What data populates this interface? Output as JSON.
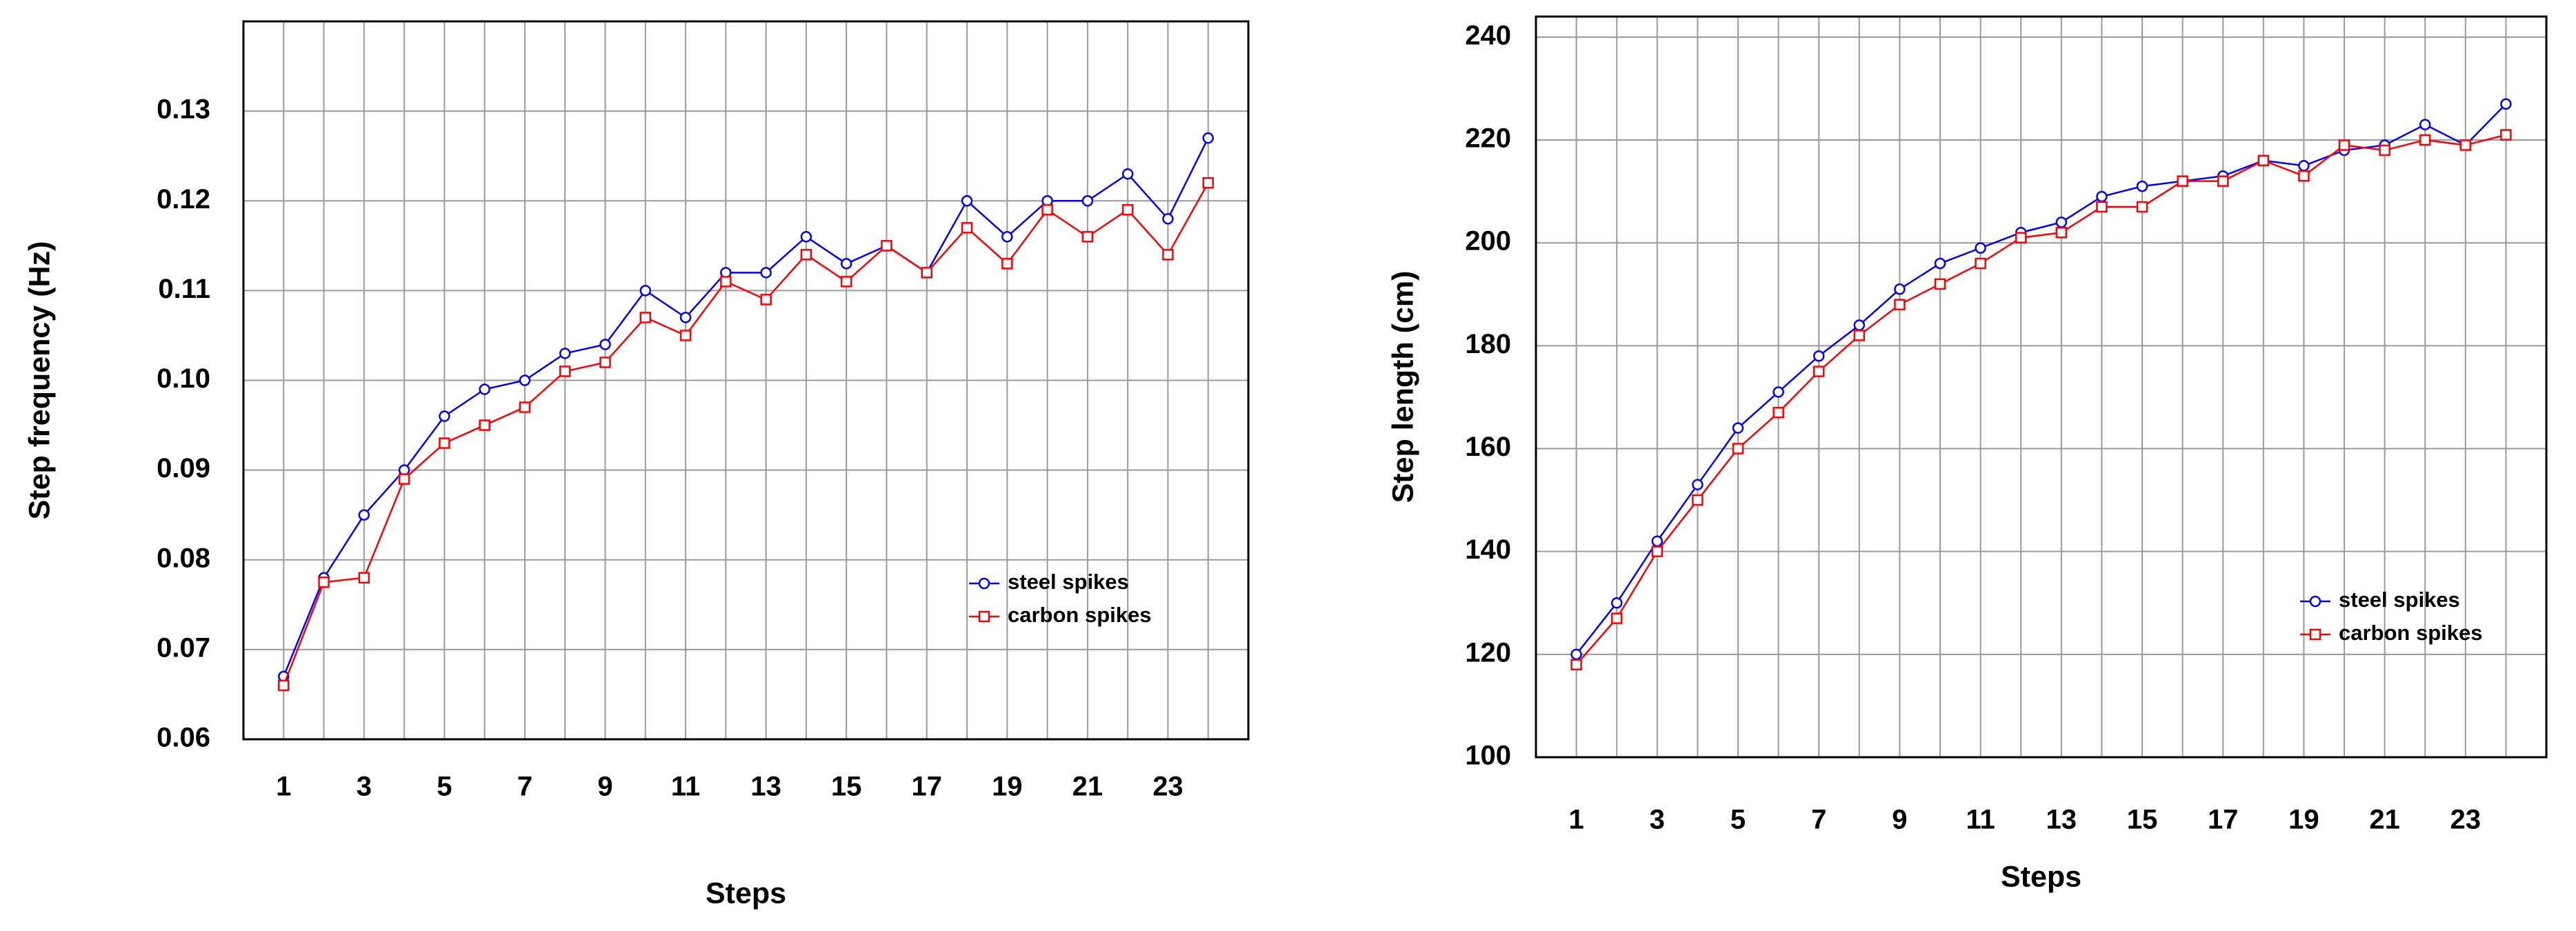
{
  "chart_data": [
    {
      "type": "line",
      "xlabel": "Steps",
      "ylabel": "Step frequency (Hz)",
      "x": [
        1,
        2,
        3,
        4,
        5,
        6,
        7,
        8,
        9,
        10,
        11,
        12,
        13,
        14,
        15,
        16,
        17,
        18,
        19,
        20,
        21,
        22,
        23,
        24
      ],
      "xlim": [
        0,
        25
      ],
      "xticks": [
        1,
        3,
        5,
        7,
        9,
        11,
        13,
        15,
        17,
        19,
        21,
        23
      ],
      "ylim": [
        0.06,
        0.14
      ],
      "yticks": [
        0.06,
        0.07,
        0.08,
        0.09,
        {
          "value": 0.1,
          "label": "0.10"
        },
        0.11,
        0.12,
        0.13
      ],
      "grid": true,
      "legend": "lower right",
      "series": [
        {
          "name": "steel spikes",
          "color": "#0000ff",
          "marker": "circle",
          "values": [
            0.067,
            0.078,
            0.085,
            0.09,
            0.096,
            0.099,
            0.1,
            0.103,
            0.104,
            0.11,
            0.107,
            0.112,
            0.112,
            0.116,
            0.113,
            0.115,
            0.112,
            0.12,
            0.116,
            0.12,
            0.12,
            0.123,
            0.118,
            0.127
          ]
        },
        {
          "name": "carbon spikes",
          "color": "#ff0000",
          "marker": "square",
          "values": [
            0.066,
            0.0775,
            0.078,
            0.089,
            0.093,
            0.095,
            0.097,
            0.101,
            0.102,
            0.107,
            0.105,
            0.111,
            0.109,
            0.114,
            0.111,
            0.115,
            0.112,
            0.117,
            0.113,
            0.119,
            0.116,
            0.119,
            0.114,
            0.122
          ]
        }
      ]
    },
    {
      "type": "line",
      "xlabel": "Steps",
      "ylabel": "Step length (cm)",
      "x": [
        1,
        2,
        3,
        4,
        5,
        6,
        7,
        8,
        9,
        10,
        11,
        12,
        13,
        14,
        15,
        16,
        17,
        18,
        19,
        20,
        21,
        22,
        23,
        24
      ],
      "xlim": [
        0,
        25
      ],
      "xticks": [
        1,
        3,
        5,
        7,
        9,
        11,
        13,
        15,
        17,
        19,
        21,
        23
      ],
      "ylim": [
        100,
        244
      ],
      "yticks": [
        100,
        120,
        140,
        160,
        180,
        200,
        220,
        240
      ],
      "grid": true,
      "legend": "lower right",
      "series": [
        {
          "name": "steel spikes",
          "color": "#0000ff",
          "marker": "circle",
          "values": [
            120,
            130,
            142,
            153,
            164,
            171,
            178,
            184,
            191,
            196,
            199,
            202,
            204,
            209,
            211,
            212,
            213,
            216,
            215,
            218,
            219,
            223,
            219,
            227
          ]
        },
        {
          "name": "carbon spikes",
          "color": "#ff0000",
          "marker": "square",
          "values": [
            118,
            127,
            140,
            150,
            160,
            167,
            175,
            182,
            188,
            192,
            196,
            201,
            202,
            207,
            207,
            212,
            212,
            216,
            213,
            219,
            218,
            220,
            219,
            221
          ]
        }
      ]
    }
  ]
}
